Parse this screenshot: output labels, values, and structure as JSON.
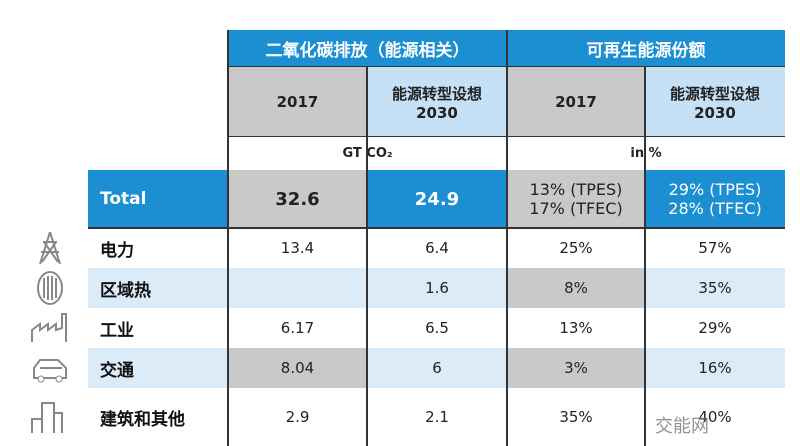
{
  "header": {
    "co2_group": "二氧化碳排放（能源相关）",
    "renew_group": "可再生能源份额",
    "col_2017": "2017",
    "col_scenario": "能源转型设想",
    "col_2030": "2030",
    "unit_co2": "GT CO₂",
    "unit_pct": "in %"
  },
  "total": {
    "label": "Total",
    "co2_2017": "32.6",
    "co2_2030": "24.9",
    "ren_2017_a": "13% (TPES)",
    "ren_2017_b": "17% (TFEC)",
    "ren_2030_a": "29% (TPES)",
    "ren_2030_b": "28% (TFEC)"
  },
  "rows": [
    {
      "label": "电力",
      "icon": "power-tower-icon",
      "c1": "13.4",
      "c2": "6.4",
      "c3": "25%",
      "c4": "57%"
    },
    {
      "label": "区域热",
      "icon": "district-heat-icon",
      "c1": "",
      "c2": "1.6",
      "c3": "8%",
      "c4": "35%"
    },
    {
      "label": "工业",
      "icon": "factory-icon",
      "c1": "6.17",
      "c2": "6.5",
      "c3": "13%",
      "c4": "29%"
    },
    {
      "label": "交通",
      "icon": "car-icon",
      "c1": "8.04",
      "c2": "6",
      "c3": "3%",
      "c4": "16%"
    },
    {
      "label": "建筑和其他",
      "icon": "building-icon",
      "c1": "2.9",
      "c2": "2.1",
      "c3": "35%",
      "c4": "40%"
    }
  ],
  "watermark": "交能网"
}
